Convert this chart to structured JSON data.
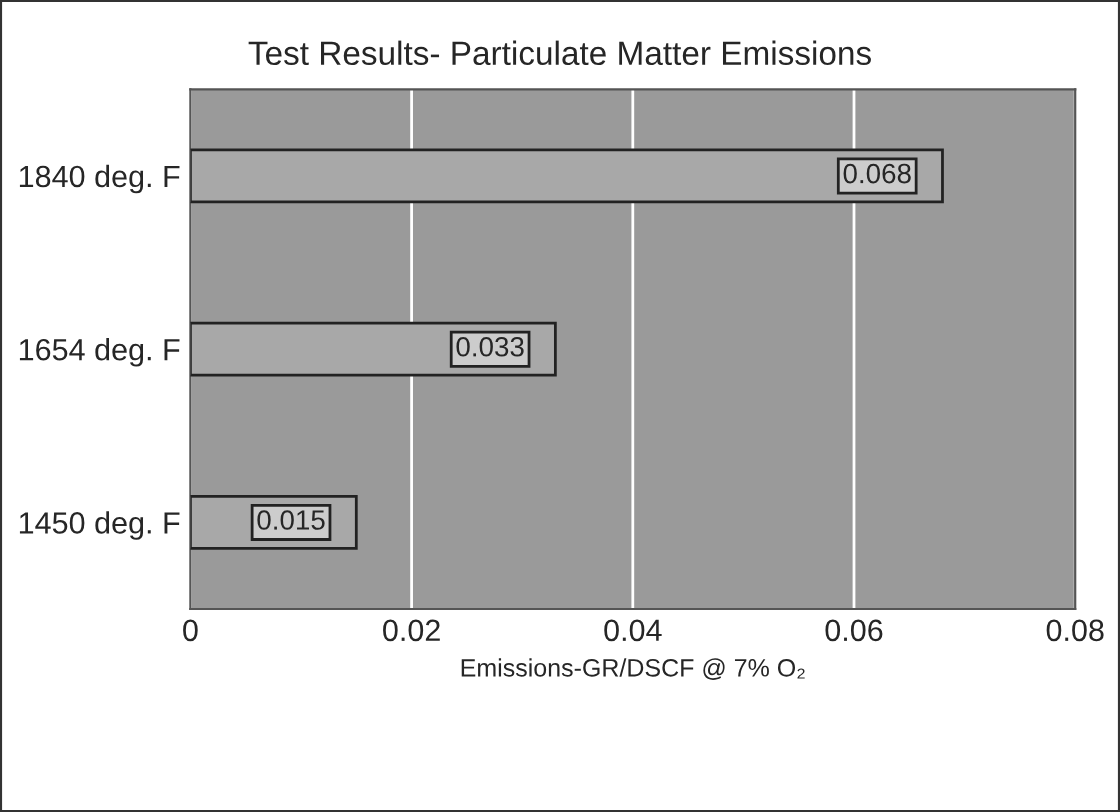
{
  "chart_data": {
    "type": "bar",
    "orientation": "horizontal",
    "title": "Test Results- Particulate Matter Emissions",
    "xlabel": "Emissions-GR/DSCF @ 7% O₂",
    "categories": [
      "1840 deg. F",
      "1654 deg. F",
      "1450 deg. F"
    ],
    "values": [
      0.068,
      0.033,
      0.015
    ],
    "color": "#a8a8a8",
    "xlim": [
      0,
      0.08
    ],
    "xticks": [
      0,
      0.02,
      0.04,
      0.06,
      0.08
    ],
    "grid": "x",
    "data_labels": true
  }
}
